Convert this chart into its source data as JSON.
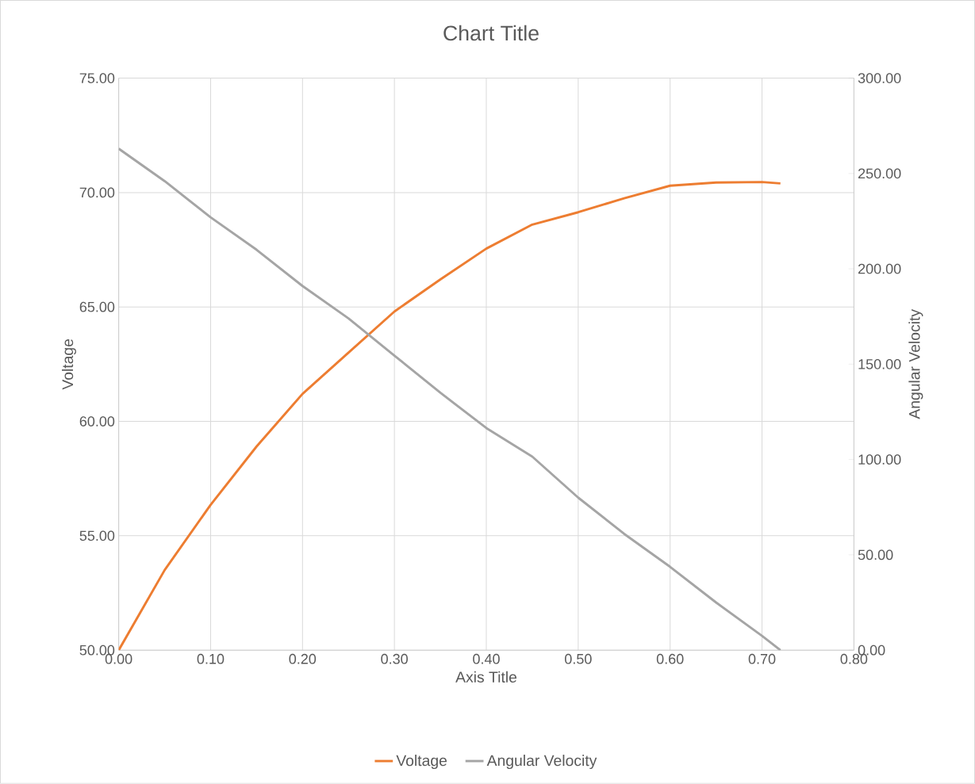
{
  "chart_data": {
    "type": "line",
    "title": "Chart Title",
    "xlabel": "Axis Title",
    "ylabel": "Voltage",
    "y2label": "Angular Velocity",
    "x": [
      0,
      0.05,
      0.1,
      0.15,
      0.2,
      0.25,
      0.3,
      0.35,
      0.4,
      0.45,
      0.5,
      0.55,
      0.6,
      0.65,
      0.7,
      0.72
    ],
    "xlim": [
      0,
      0.8
    ],
    "xticks": [
      {
        "value": 0,
        "label": "0.00"
      },
      {
        "value": 0.1,
        "label": "0.10"
      },
      {
        "value": 0.2,
        "label": "0.20"
      },
      {
        "value": 0.3,
        "label": "0.30"
      },
      {
        "value": 0.4,
        "label": "0.40"
      },
      {
        "value": 0.5,
        "label": "0.50"
      },
      {
        "value": 0.6,
        "label": "0.60"
      },
      {
        "value": 0.7,
        "label": "0.70"
      },
      {
        "value": 0.8,
        "label": "0.80"
      }
    ],
    "ylim": [
      50,
      75
    ],
    "yticks": [
      {
        "value": 50,
        "label": "50.00"
      },
      {
        "value": 55,
        "label": "55.00"
      },
      {
        "value": 60,
        "label": "60.00"
      },
      {
        "value": 65,
        "label": "65.00"
      },
      {
        "value": 70,
        "label": "70.00"
      },
      {
        "value": 75,
        "label": "75.00"
      }
    ],
    "y2lim": [
      0,
      300
    ],
    "y2ticks": [
      {
        "value": 0,
        "label": "0.00"
      },
      {
        "value": 50,
        "label": "50.00"
      },
      {
        "value": 100,
        "label": "100.00"
      },
      {
        "value": 150,
        "label": "150.00"
      },
      {
        "value": 200,
        "label": "200.00"
      },
      {
        "value": 250,
        "label": "250.00"
      },
      {
        "value": 300,
        "label": "300.00"
      }
    ],
    "grid": true,
    "legend": "bottom",
    "series": [
      {
        "name": "Voltage",
        "color": "#ed7d31",
        "values": [
          50,
          53.5,
          56.35,
          58.9,
          61.2,
          63.0,
          64.8,
          66.2,
          67.55,
          68.6,
          69.14,
          69.75,
          70.3,
          70.44,
          70.46,
          70.4
        ]
      },
      {
        "name": "Angular Velocity",
        "color": "#a5a5a5",
        "axis": "y2",
        "values": [
          263,
          246,
          227,
          210,
          191,
          174,
          154.5,
          135,
          116.5,
          101.5,
          80,
          61,
          43.7,
          25,
          7.5,
          0
        ]
      }
    ]
  }
}
